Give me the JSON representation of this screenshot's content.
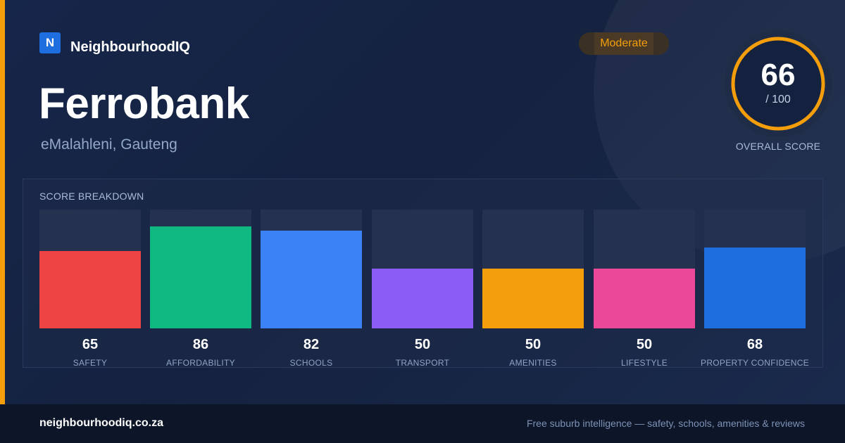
{
  "brand": {
    "logo_letter": "N",
    "name": "NeighbourhoodIQ",
    "logo_color": "#1e6ee0"
  },
  "suburb": {
    "name": "Ferrobank",
    "location": "eMalahleni, Gauteng"
  },
  "rating": {
    "label": "Moderate",
    "color": "#f59e0b"
  },
  "score": {
    "value": "66",
    "out_of": "/ 100",
    "fraction": 0.66,
    "label": "OVERALL SCORE"
  },
  "breakdown": {
    "title": "SCORE BREAKDOWN",
    "max": 100,
    "items": [
      {
        "value": 65,
        "value_text": "65",
        "label": "SAFETY",
        "color": "#ef4444"
      },
      {
        "value": 86,
        "value_text": "86",
        "label": "AFFORDABILITY",
        "color": "#10b981"
      },
      {
        "value": 82,
        "value_text": "82",
        "label": "SCHOOLS",
        "color": "#3b82f6"
      },
      {
        "value": 50,
        "value_text": "50",
        "label": "TRANSPORT",
        "color": "#8b5cf6"
      },
      {
        "value": 50,
        "value_text": "50",
        "label": "AMENITIES",
        "color": "#f59e0b"
      },
      {
        "value": 50,
        "value_text": "50",
        "label": "LIFESTYLE",
        "color": "#ec4899"
      },
      {
        "value": 68,
        "value_text": "68",
        "label": "PROPERTY CONFIDENCE",
        "color": "#1e6ee0"
      }
    ]
  },
  "footer": {
    "url": "neighbourhoodiq.co.za",
    "tagline": "Free suburb intelligence — safety, schools, amenities & reviews"
  }
}
